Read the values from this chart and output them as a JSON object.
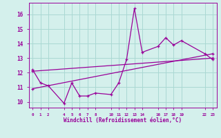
{
  "xlabel": "Windchill (Refroidissement éolien,°C)",
  "background_color": "#d4f0ec",
  "grid_color": "#aad8d3",
  "line_color": "#990099",
  "line1_x": [
    0,
    1,
    2,
    4,
    5,
    6,
    7,
    8,
    10,
    11,
    12,
    13,
    14,
    16,
    17,
    18,
    19,
    22,
    23
  ],
  "line1_y": [
    12.2,
    11.3,
    11.1,
    9.9,
    11.3,
    10.4,
    10.4,
    10.6,
    10.5,
    11.3,
    12.9,
    16.4,
    13.4,
    13.8,
    14.4,
    13.9,
    14.2,
    13.3,
    12.9
  ],
  "line2_x": [
    0,
    23
  ],
  "line2_y": [
    10.9,
    13.3
  ],
  "line3_x": [
    0,
    23
  ],
  "line3_y": [
    12.1,
    13.0
  ],
  "ylim": [
    9.6,
    16.8
  ],
  "xlim": [
    -0.5,
    23.5
  ],
  "yticks": [
    10,
    11,
    12,
    13,
    14,
    15,
    16
  ],
  "xtick_positions": [
    0,
    1,
    2,
    4,
    5,
    6,
    7,
    8,
    10,
    11,
    12,
    13,
    14,
    16,
    17,
    18,
    19,
    22,
    23
  ],
  "xtick_labels": [
    "0",
    "1",
    "2",
    "4",
    "5",
    "6",
    "7",
    "8",
    "10",
    "11",
    "12",
    "13",
    "14",
    "16",
    "17",
    "18",
    "19",
    "22",
    "23"
  ]
}
